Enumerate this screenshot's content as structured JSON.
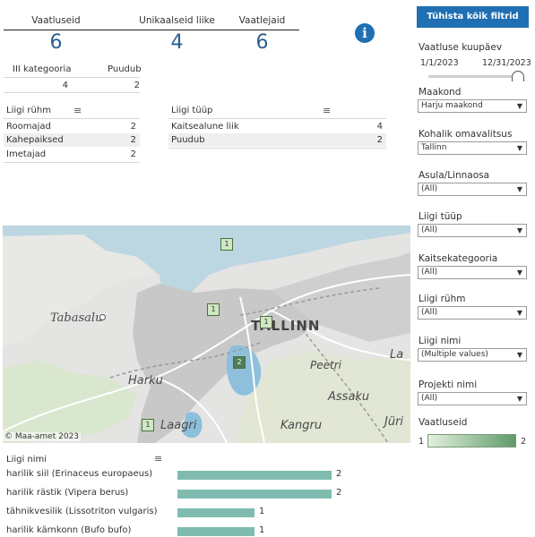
{
  "kpis": [
    {
      "label": "Vaatluseid",
      "value": "6"
    },
    {
      "label": "Unikaalseid liike",
      "value": "4"
    },
    {
      "label": "Vaatlejaid",
      "value": "6"
    }
  ],
  "category_table": {
    "headers": [
      "III kategooria",
      "Puudub"
    ],
    "values": [
      "4",
      "2"
    ]
  },
  "group_table": {
    "header": "Liigi rühm",
    "rows": [
      {
        "name": "Roomajad",
        "value": "2"
      },
      {
        "name": "Kahepaiksed",
        "value": "2"
      },
      {
        "name": "Imetajad",
        "value": "2"
      }
    ]
  },
  "type_table": {
    "header": "Liigi tüüp",
    "rows": [
      {
        "name": "Kaitsealune liik",
        "value": "4"
      },
      {
        "name": "Puudub",
        "value": "2"
      }
    ]
  },
  "map": {
    "copyright": "© Maa-amet 2023",
    "places": [
      "Tabasalu",
      "TALLINN",
      "Peetri",
      "Harku",
      "Assaku",
      "Laagri",
      "Kangru",
      "Jüri",
      "La"
    ],
    "clusters": [
      "1",
      "1",
      "1",
      "2",
      "1"
    ]
  },
  "species_chart": {
    "header": "Liigi nimi",
    "rows": [
      {
        "name": "harilik siil (Erinaceus europaeus)",
        "value": 2
      },
      {
        "name": "harilik rästik (Vipera berus)",
        "value": 2
      },
      {
        "name": "tähnikvesilik (Lissotriton vulgaris)",
        "value": 1
      },
      {
        "name": "harilik kärnkonn (Bufo bufo)",
        "value": 1
      }
    ]
  },
  "filters": {
    "clear_button": "Tühista kõik filtrid",
    "date": {
      "label": "Vaatluse kuupäev",
      "start": "1/1/2023",
      "end": "12/31/2023"
    },
    "selects": [
      {
        "label": "Maakond",
        "value": "Harju maakond"
      },
      {
        "label": "Kohalik omavalitsus",
        "value": "Tallinn"
      },
      {
        "label": "Asula/Linnaosa",
        "value": "(All)"
      },
      {
        "label": "Liigi tüüp",
        "value": "(All)"
      },
      {
        "label": "Kaitsekategooria",
        "value": "(All)"
      },
      {
        "label": "Liigi rühm",
        "value": "(All)"
      },
      {
        "label": "Liigi nimi",
        "value": "(Multiple values)"
      },
      {
        "label": "Projekti nimi",
        "value": "(All)"
      }
    ],
    "legend": {
      "label": "Vaatluseid",
      "min": "1",
      "max": "2"
    }
  },
  "colors": {
    "accent": "#1f6fb2",
    "bar": "#7fbcaf",
    "kpi": "#2b5f8f"
  }
}
